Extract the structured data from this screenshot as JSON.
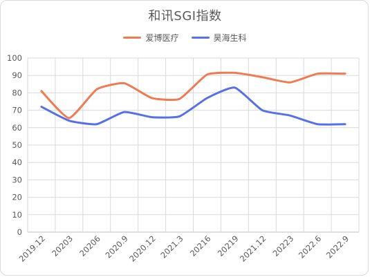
{
  "chart_data": {
    "type": "line",
    "title": "和讯SGI指数",
    "legend_position": "top",
    "categories": [
      "2019.12",
      "2020.3",
      "2020.6",
      "2020.9",
      "2020.12",
      "2021.3",
      "2021.6",
      "2021.9",
      "2021.12",
      "2022.3",
      "2022.6",
      "2022.9"
    ],
    "x_tick_labels": [
      "2019.12",
      "20203",
      "20206",
      "2020.9",
      "2020.12",
      "2021.3",
      "20216",
      "20219",
      "2021.12",
      "20223",
      "2022.6",
      "2022.9"
    ],
    "ylim": [
      0,
      100
    ],
    "yticks": [
      0,
      10,
      20,
      30,
      40,
      50,
      60,
      70,
      80,
      90,
      100
    ],
    "grid": true,
    "xlabel": "",
    "ylabel": "",
    "series": [
      {
        "name": "爱博医疗",
        "color": "#F07A52",
        "values": [
          81,
          65.5,
          82,
          85.5,
          77,
          76.5,
          90.5,
          91.5,
          89,
          86,
          91,
          91
        ]
      },
      {
        "name": "昊海生科",
        "color": "#5570E8",
        "values": [
          72,
          64,
          62,
          69,
          66,
          66.5,
          77,
          83,
          70,
          67,
          62,
          62
        ]
      }
    ]
  }
}
